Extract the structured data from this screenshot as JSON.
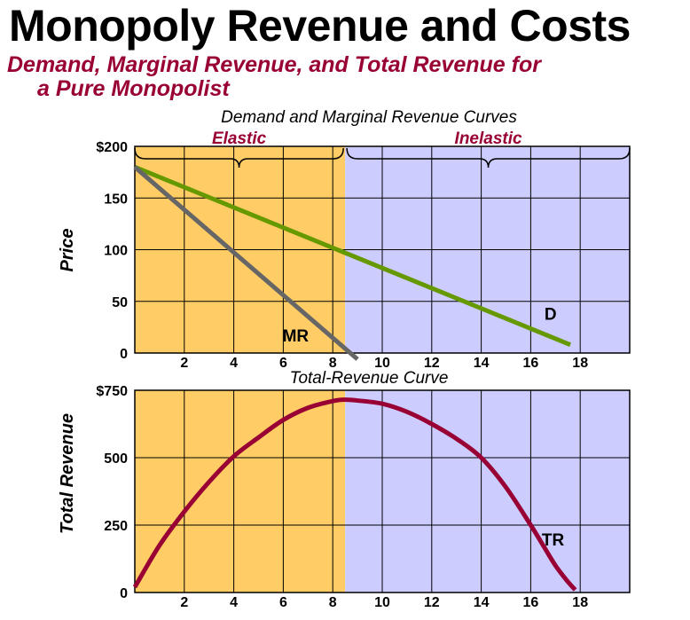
{
  "title": "Monopoly Revenue and Costs",
  "subtitle_line1": "Demand, Marginal Revenue, and Total Revenue for",
  "subtitle_line2": "a Pure Monopolist",
  "colors": {
    "elastic": "#FFCC66",
    "inelastic": "#CCCCFF",
    "demand": "#669900",
    "mr": "#666666",
    "tr": "#990033",
    "region_text": "#990033"
  },
  "chart_data": [
    {
      "type": "line",
      "title": "Demand and Marginal Revenue Curves",
      "ylabel": "Price",
      "xlim": [
        0,
        20
      ],
      "ylim": [
        0,
        200
      ],
      "x_ticks": [
        "2",
        "4",
        "6",
        "8",
        "10",
        "12",
        "14",
        "16",
        "18"
      ],
      "y_ticks": [
        "0",
        "50",
        "100",
        "150",
        "$200"
      ],
      "regions": [
        {
          "label": "Elastic",
          "x_range": [
            0,
            8.5
          ]
        },
        {
          "label": "Inelastic",
          "x_range": [
            8.5,
            20
          ]
        }
      ],
      "series": [
        {
          "name": "D",
          "x": [
            0,
            17.6
          ],
          "y": [
            180,
            8
          ]
        },
        {
          "name": "MR",
          "x": [
            0,
            9
          ],
          "y": [
            180,
            -6
          ]
        }
      ],
      "grid": true
    },
    {
      "type": "line",
      "title": "Total-Revenue Curve",
      "ylabel": "Total Revenue",
      "xlim": [
        0,
        20
      ],
      "ylim": [
        0,
        750
      ],
      "x_ticks": [
        "2",
        "4",
        "6",
        "8",
        "10",
        "12",
        "14",
        "16",
        "18"
      ],
      "y_ticks": [
        "0",
        "250",
        "500",
        "$750"
      ],
      "series": [
        {
          "name": "TR",
          "x": [
            0,
            1,
            2,
            3,
            4,
            5,
            6,
            7,
            8,
            8.5,
            9,
            10,
            11,
            12,
            13,
            14,
            15,
            16,
            16.5,
            17,
            17.5,
            17.8
          ],
          "y": [
            20,
            175,
            300,
            410,
            505,
            575,
            640,
            685,
            710,
            715,
            712,
            700,
            670,
            625,
            570,
            500,
            390,
            250,
            175,
            100,
            40,
            10
          ]
        }
      ],
      "grid": true
    }
  ]
}
